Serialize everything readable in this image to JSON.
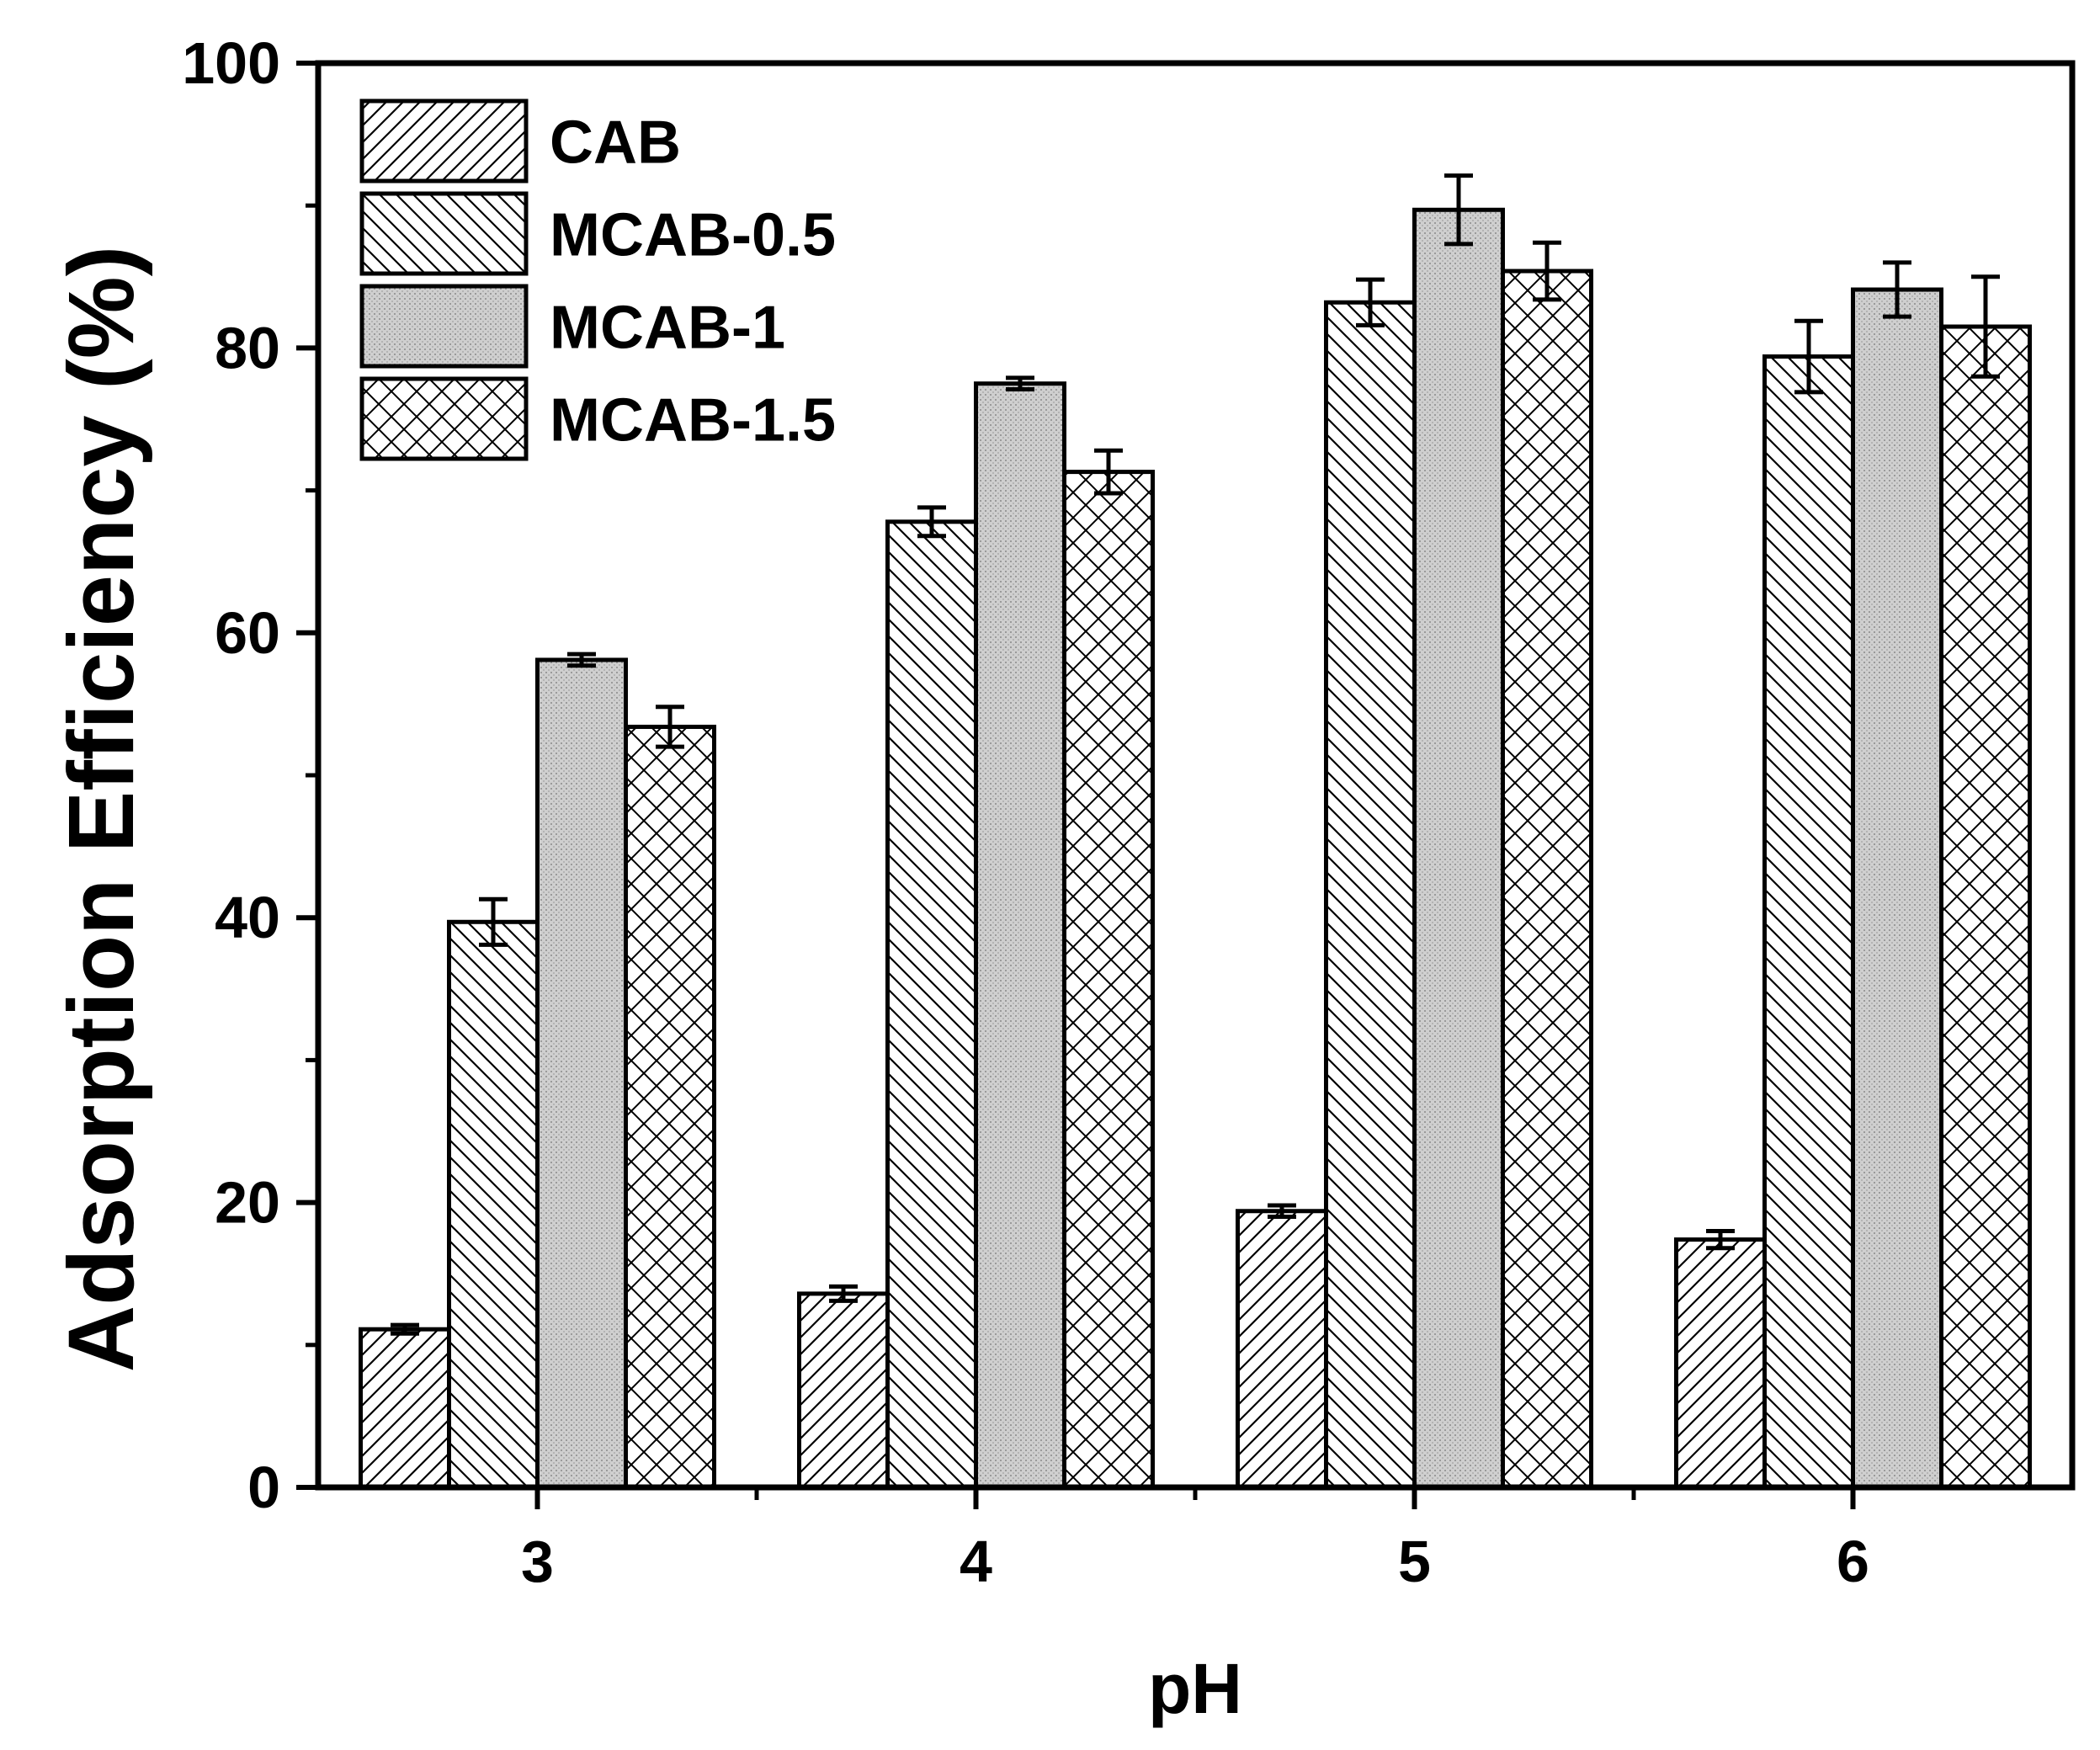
{
  "chart_data": {
    "type": "bar",
    "title": "",
    "xlabel": "pH",
    "ylabel": "Adsorption Efficiency (%)",
    "categories": [
      "3",
      "4",
      "5",
      "6"
    ],
    "ylim": [
      0,
      100
    ],
    "yticks": [
      0,
      20,
      40,
      60,
      80,
      100
    ],
    "grid": false,
    "legend_position": "top-left",
    "series": [
      {
        "name": "CAB",
        "pattern": "diagonal-forward",
        "fill": "#ffffff",
        "values": [
          11.1,
          13.6,
          19.4,
          17.4
        ],
        "errors": [
          0.3,
          0.5,
          0.4,
          0.6
        ]
      },
      {
        "name": "MCAB-0.5",
        "pattern": "diagonal-backward",
        "fill": "#ffffff",
        "values": [
          39.7,
          67.8,
          83.2,
          79.4
        ],
        "errors": [
          1.6,
          1.0,
          1.6,
          2.5
        ]
      },
      {
        "name": "MCAB-1",
        "pattern": "dotted-gray",
        "fill": "#cfcfcf",
        "values": [
          58.1,
          77.5,
          89.7,
          84.1
        ],
        "errors": [
          0.4,
          0.4,
          2.4,
          1.9
        ]
      },
      {
        "name": "MCAB-1.5",
        "pattern": "crosshatch",
        "fill": "#ffffff",
        "values": [
          53.4,
          71.3,
          85.4,
          81.5
        ],
        "errors": [
          1.4,
          1.5,
          2.0,
          3.5
        ]
      }
    ]
  }
}
